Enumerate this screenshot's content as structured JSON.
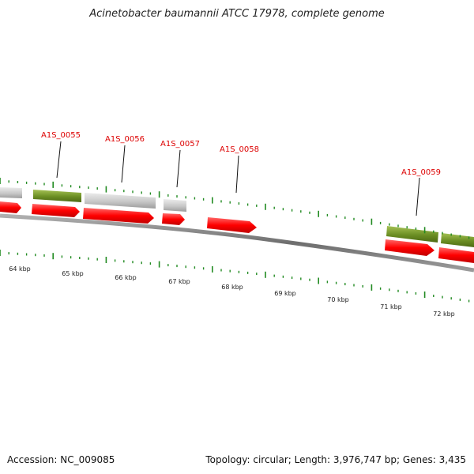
{
  "title": "Acinetobacter baumannii ATCC 17978, complete genome",
  "footer": {
    "accession": "Accession: NC_009085",
    "summary": "Topology: circular; Length: 3,976,747 bp; Genes: 3,435"
  },
  "colors": {
    "cds_forward": "#ff0000",
    "gene_green": "#6b8e23",
    "gene_grey": "#c8c8c8",
    "backbone": "#808080",
    "tick": "#228b22",
    "gene_label": "#dd0000"
  },
  "gene_labels": [
    "A1S_0055",
    "A1S_0056",
    "A1S_0057",
    "A1S_0058",
    "A1S_0059"
  ],
  "scale_labels": [
    "64 kbp",
    "65 kbp",
    "66 kbp",
    "67 kbp",
    "68 kbp",
    "69 kbp",
    "70 kbp",
    "71 kbp",
    "72 kbp"
  ]
}
